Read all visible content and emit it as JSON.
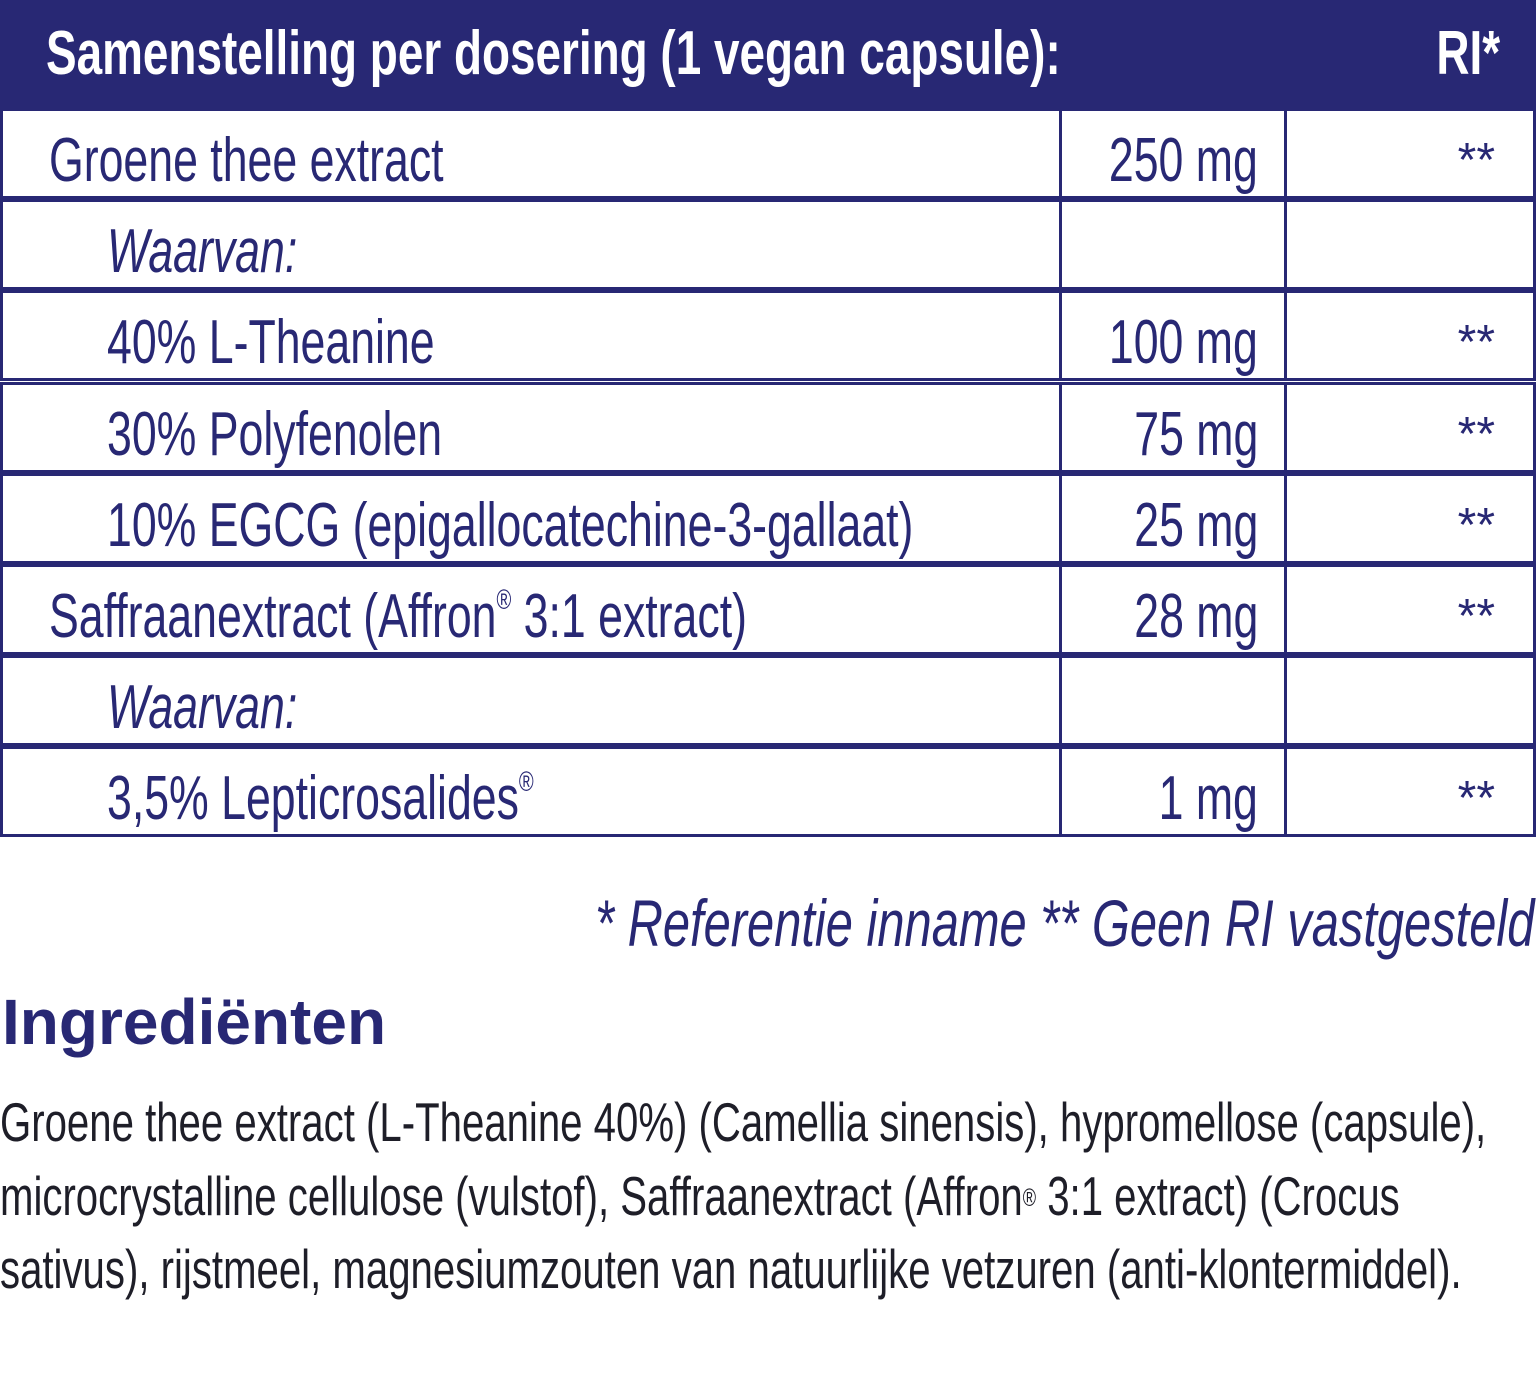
{
  "table": {
    "header_title": "Samenstelling per dosering (1 vegan capsule):",
    "header_ri": "RI*",
    "rows": [
      {
        "name": "Groene thee extract",
        "amount": "250 mg",
        "ri": "**",
        "indent": false,
        "italic": false
      },
      {
        "name": "Waarvan:",
        "amount": "",
        "ri": "",
        "indent": true,
        "italic": true
      },
      {
        "name": "40% L-Theanine",
        "amount": "100 mg",
        "ri": "**",
        "indent": true,
        "italic": false
      },
      {
        "name": "30% Polyfenolen",
        "amount": "75 mg",
        "ri": "**",
        "indent": true,
        "italic": false
      },
      {
        "name": "10%  EGCG (epigallocatechine-3-gallaat)",
        "amount": "25 mg",
        "ri": "**",
        "indent": true,
        "italic": false
      },
      {
        "name": "Saffraanextract (Affron® 3:1 extract)",
        "amount": "28 mg",
        "ri": "**",
        "indent": false,
        "italic": false
      },
      {
        "name": "Waarvan:",
        "amount": "",
        "ri": "",
        "indent": true,
        "italic": true
      },
      {
        "name": "3,5% Lepticrosalides®",
        "amount": "1 mg",
        "ri": "**",
        "indent": true,
        "italic": false
      }
    ]
  },
  "footnote": "* Referentie inname   ** Geen RI vastgesteld",
  "ingredients": {
    "heading": "Ingrediënten",
    "text": "Groene thee extract (L-Theanine 40%) (Camellia sinensis), hypromellose (capsule), microcrystalline cellulose (vulstof), Saffraanextract (Affron® 3:1 extract) (Crocus sativus), rijstmeel, magnesiumzouten van natuurlijke vetzuren (anti-klontermiddel)."
  },
  "colors": {
    "brand": "#282874",
    "body_text": "#1e1e28"
  }
}
